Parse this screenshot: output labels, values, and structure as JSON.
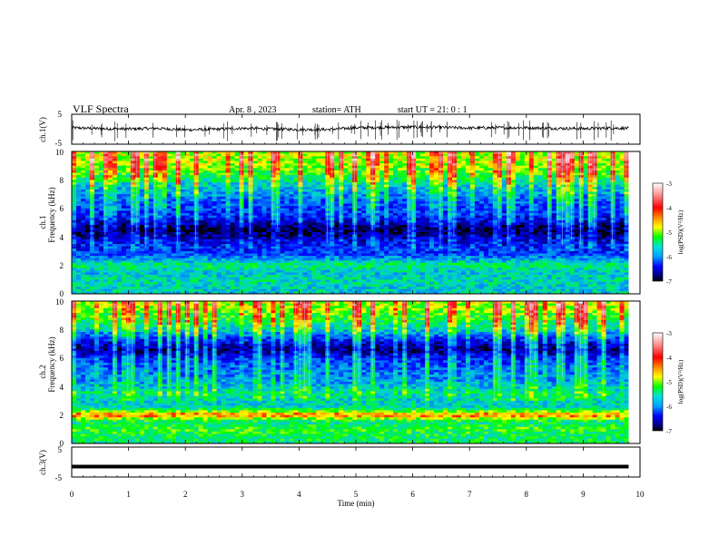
{
  "header": {
    "title": "VLF  Spectra",
    "date": "Apr. 8  , 2023",
    "station": "station= ATH",
    "start": "start  UT  =   21: 0   : 1"
  },
  "panels": {
    "ch1_wave": {
      "ylabel": "ch.1(V)",
      "yticks": [
        "5",
        "-5"
      ]
    },
    "ch1_spec": {
      "ylabel_top": "ch.1",
      "ylabel": "Frequency  (kHz)",
      "yticks": [
        "10",
        "8",
        "6",
        "4",
        "2",
        "0"
      ]
    },
    "ch2_spec": {
      "ylabel_top": "ch.2",
      "ylabel": "Frequency  (kHz)",
      "yticks": [
        "10",
        "8",
        "6",
        "4",
        "2",
        "0"
      ]
    },
    "ch3_wave": {
      "ylabel": "ch.3(V)",
      "yticks": [
        "5",
        "-5"
      ]
    }
  },
  "xaxis": {
    "label": "Time  (min)",
    "ticks": [
      "0",
      "1",
      "2",
      "3",
      "4",
      "5",
      "6",
      "7",
      "8",
      "9",
      "10"
    ]
  },
  "colorbar": {
    "label": "log(PSD)(V²/Hz)",
    "ticks": [
      "-3",
      "-4",
      "-5",
      "-6",
      "-7"
    ]
  },
  "chart_data": [
    {
      "type": "line",
      "name": "ch.1 waveform",
      "xlabel": "Time  (min)",
      "ylabel": "ch.1(V)",
      "xlim": [
        0,
        10
      ],
      "ylim": [
        -5,
        5
      ],
      "x": [
        0,
        0.5,
        1,
        1.5,
        2,
        2.5,
        3,
        3.5,
        4,
        4.5,
        5,
        5.5,
        6,
        6.5,
        7,
        7.5,
        8,
        8.5,
        9,
        9.5,
        9.8
      ],
      "y": [
        0.5,
        0.2,
        0.1,
        0.3,
        -0.2,
        0.0,
        0.3,
        0.1,
        -0.1,
        -0.1,
        0.5,
        0.6,
        0.7,
        0.6,
        0.4,
        0.5,
        0.5,
        0.3,
        0.2,
        0.4,
        0.3
      ]
    },
    {
      "type": "heatmap",
      "name": "ch.1 spectrogram",
      "xlabel": "Time  (min)",
      "ylabel": "Frequency  (kHz)",
      "xlim": [
        0,
        10
      ],
      "ylim": [
        0,
        10
      ],
      "data_xmax": 9.8,
      "zlim": [
        -7,
        -3
      ],
      "colorbar_label": "log(PSD)(V²/Hz)",
      "freq_kHz": [
        0.5,
        1,
        1.5,
        2,
        2.5,
        3,
        3.5,
        4,
        4.5,
        5,
        5.5,
        6,
        6.5,
        7,
        7.5,
        8,
        8.5,
        9,
        9.5,
        10
      ],
      "mean_logpsd": [
        -5.5,
        -5.4,
        -5.6,
        -5.2,
        -5.8,
        -6.2,
        -6.3,
        -6.6,
        -6.9,
        -6.5,
        -6.2,
        -6.1,
        -6.0,
        -5.8,
        -5.6,
        -5.3,
        -5.0,
        -4.8,
        -4.7,
        -4.7
      ]
    },
    {
      "type": "heatmap",
      "name": "ch.2 spectrogram",
      "xlabel": "Time  (min)",
      "ylabel": "Frequency  (kHz)",
      "xlim": [
        0,
        10
      ],
      "ylim": [
        0,
        10
      ],
      "data_xmax": 9.8,
      "zlim": [
        -7,
        -3
      ],
      "colorbar_label": "log(PSD)(V²/Hz)",
      "freq_kHz": [
        0.5,
        1,
        1.5,
        2,
        2.5,
        3,
        3.5,
        4,
        4.5,
        5,
        5.5,
        6,
        6.5,
        7,
        7.5,
        8,
        8.5,
        9,
        9.5,
        10
      ],
      "mean_logpsd": [
        -5.2,
        -5.0,
        -5.3,
        -4.2,
        -5.4,
        -5.5,
        -5.3,
        -5.6,
        -5.8,
        -5.9,
        -6.0,
        -6.2,
        -6.7,
        -6.5,
        -6.0,
        -5.5,
        -5.2,
        -5.0,
        -4.8,
        -4.7
      ]
    },
    {
      "type": "line",
      "name": "ch.3 waveform",
      "xlabel": "Time  (min)",
      "ylabel": "ch.3(V)",
      "xlim": [
        0,
        10
      ],
      "ylim": [
        -5,
        5
      ],
      "x": [
        0,
        9.8
      ],
      "y": [
        -1.5,
        -1.5
      ]
    }
  ]
}
